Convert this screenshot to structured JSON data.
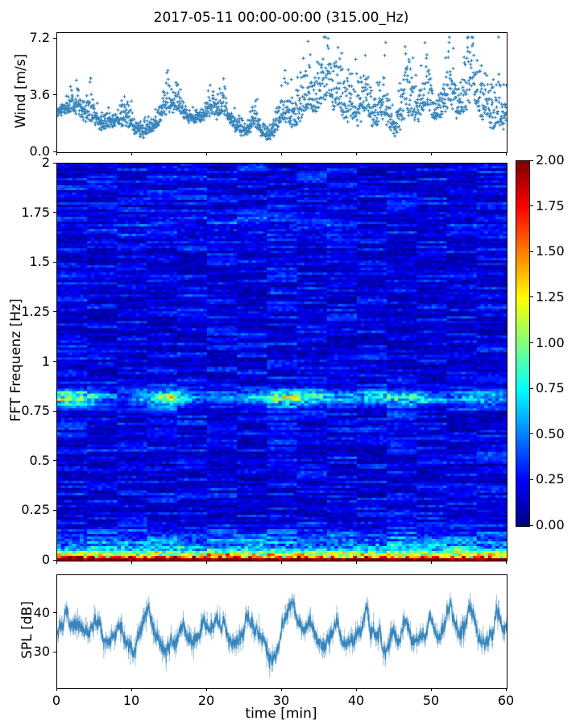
{
  "figure": {
    "title": "2017-05-11 00:00-00:00 (315.00_Hz)",
    "xlabel": "time [min]",
    "background": "#ffffff",
    "text_color": "#000000",
    "accent_blue": "#1f77b4"
  },
  "chart_data": [
    {
      "id": "wind",
      "type": "scatter",
      "ylabel": "Wind [m/s]",
      "marker": "+",
      "color": "#1f77b4",
      "xlim": [
        0,
        60
      ],
      "ylim": [
        0,
        7.56
      ],
      "yticks": [
        {
          "v": 0.0,
          "label": "0.0"
        },
        {
          "v": 3.6,
          "label": "3.6"
        },
        {
          "v": 7.2,
          "label": "7.2"
        }
      ],
      "xticks": [
        {
          "v": 0
        },
        {
          "v": 10
        },
        {
          "v": 20
        },
        {
          "v": 30
        },
        {
          "v": 40
        },
        {
          "v": 50
        },
        {
          "v": 60
        }
      ],
      "n_points": 1800,
      "summary": "Wind speed scatter: dense band 1-3.5 m/s for first ~30 min with occasional gusts to ~5; gustier after 30 min with spikes reaching 7.2 m/s near 36, 47 and 55 min; brief calm dip near 28 min.",
      "synthesis": {
        "seed": 11,
        "base_level": 1.7,
        "calm_noise": 0.75,
        "gusty_noise": 1.65,
        "gust_onset_min": 28,
        "dip": {
          "t": 28.2,
          "depth": 0.45,
          "w": 0.7
        },
        "gust_clusters": [
          {
            "t": 2.5,
            "a": 0.8,
            "w": 0.6
          },
          {
            "t": 4.6,
            "a": 1.1,
            "w": 0.5
          },
          {
            "t": 9.2,
            "a": 1.0,
            "w": 0.5
          },
          {
            "t": 14.8,
            "a": 1.6,
            "w": 0.6
          },
          {
            "t": 16.2,
            "a": 1.2,
            "w": 0.4
          },
          {
            "t": 20.5,
            "a": 0.9,
            "w": 0.5
          },
          {
            "t": 22.3,
            "a": 1.1,
            "w": 0.4
          },
          {
            "t": 26.3,
            "a": 1.1,
            "w": 0.4
          },
          {
            "t": 30.5,
            "a": 1.5,
            "w": 0.5
          },
          {
            "t": 33.2,
            "a": 2.0,
            "w": 0.7
          },
          {
            "t": 35.8,
            "a": 3.3,
            "w": 0.6
          },
          {
            "t": 37.6,
            "a": 2.8,
            "w": 0.5
          },
          {
            "t": 39.3,
            "a": 1.8,
            "w": 0.5
          },
          {
            "t": 41.2,
            "a": 2.2,
            "w": 0.6
          },
          {
            "t": 43.6,
            "a": 1.7,
            "w": 0.5
          },
          {
            "t": 46.8,
            "a": 2.8,
            "w": 0.7
          },
          {
            "t": 49.3,
            "a": 1.7,
            "w": 0.5
          },
          {
            "t": 52.3,
            "a": 2.4,
            "w": 0.6
          },
          {
            "t": 55.3,
            "a": 2.9,
            "w": 0.7
          },
          {
            "t": 57.2,
            "a": 1.8,
            "w": 0.4
          },
          {
            "t": 58.9,
            "a": 2.3,
            "w": 0.5
          }
        ]
      }
    },
    {
      "id": "spectrogram",
      "type": "heatmap",
      "ylabel": "FFT Frequenz [Hz]",
      "colormap": "jet",
      "vmin": 0,
      "vmax": 2,
      "xlim": [
        0,
        60
      ],
      "ylim": [
        0,
        2
      ],
      "yticks": [
        {
          "v": 0,
          "label": "0"
        },
        {
          "v": 0.25,
          "label": "0.25"
        },
        {
          "v": 0.5,
          "label": "0.5"
        },
        {
          "v": 0.75,
          "label": "0.75"
        },
        {
          "v": 1,
          "label": "1"
        },
        {
          "v": 1.25,
          "label": "1.25"
        },
        {
          "v": 1.5,
          "label": "1.5"
        },
        {
          "v": 1.75,
          "label": "1.75"
        },
        {
          "v": 2,
          "label": "2"
        }
      ],
      "xticks": [
        {
          "v": 0
        },
        {
          "v": 10
        },
        {
          "v": 20
        },
        {
          "v": 30
        },
        {
          "v": 40
        },
        {
          "v": 50
        },
        {
          "v": 60
        }
      ],
      "grid": {
        "cols": 120,
        "rows": 164
      },
      "summary": "Mostly dark-blue background (values ~0.05-0.4); bright cyan-to-yellow horizontal band near 0.82 Hz strongest around 2, 15, 33 and 48 min; very faint brighter patch near 1.68 Hz mid-record; strong multicolour band below ~0.18 Hz with saturated dark-red bottom rows (value 2.0).",
      "features": {
        "background_level": [
          0.05,
          0.4
        ],
        "main_band": {
          "freq_hz": 0.82,
          "sigma_hz": 0.028,
          "amp_base": 0.35,
          "hotspots": [
            {
              "t": 2.5,
              "amp": 0.55,
              "w": 2.5
            },
            {
              "t": 15,
              "amp": 0.5,
              "w": 2.2
            },
            {
              "t": 33,
              "amp": 0.75,
              "w": 3.2
            },
            {
              "t": 48,
              "amp": 0.5,
              "w": 2.5
            }
          ]
        },
        "faint_band": {
          "freq_hz": 1.68,
          "sigma_hz": 0.05,
          "amp": 0.16,
          "t_range": [
            8,
            38
          ]
        },
        "low_freq_band": {
          "below_hz": 0.18,
          "amp": 0.9
        },
        "surface_band": {
          "below_hz": 0.06,
          "amp": 1.1
        },
        "bottom_rows": {
          "below_hz": 0.015,
          "value_min": 1.7,
          "value_max": 2.0
        }
      },
      "synthesis": {
        "seed": 7
      }
    },
    {
      "id": "spl",
      "type": "line",
      "ylabel": "SPL [dB]",
      "xlabel": "time [min]",
      "color": "#1f77b4",
      "xlim": [
        0,
        60
      ],
      "ylim": [
        20.9,
        49.9
      ],
      "yticks": [
        {
          "v": 30,
          "label": "30"
        },
        {
          "v": 40,
          "label": "40"
        }
      ],
      "xticks": [
        {
          "v": 0,
          "label": "0"
        },
        {
          "v": 10,
          "label": "10"
        },
        {
          "v": 20,
          "label": "20"
        },
        {
          "v": 30,
          "label": "30"
        },
        {
          "v": 40,
          "label": "40"
        },
        {
          "v": 50,
          "label": "50"
        },
        {
          "v": 60,
          "label": "60"
        }
      ],
      "n_points": 3600,
      "mean_db": 34.6,
      "range_db": [
        24,
        47
      ],
      "summary": "Noisy SPL trace fluctuating around ~35 dB between ~25 and ~47 dB; pronounced dip near 28-29 min; tallest peak ~47 dB near 46.5 min.",
      "synthesis": {
        "seed": 23,
        "peaks": [
          {
            "t": 1.2,
            "a": 3.5,
            "w": 0.4
          },
          {
            "t": 5.3,
            "a": 5.0,
            "w": 0.5
          },
          {
            "t": 8.3,
            "a": 3.5,
            "w": 0.4
          },
          {
            "t": 12.2,
            "a": 4.5,
            "w": 0.5
          },
          {
            "t": 16.8,
            "a": 4.0,
            "w": 0.4
          },
          {
            "t": 19.5,
            "a": 3.5,
            "w": 0.3
          },
          {
            "t": 25.6,
            "a": 4.0,
            "w": 0.35
          },
          {
            "t": 31.3,
            "a": 5.0,
            "w": 0.5
          },
          {
            "t": 33.8,
            "a": 3.5,
            "w": 0.3
          },
          {
            "t": 37.3,
            "a": 5.5,
            "w": 0.4
          },
          {
            "t": 41.2,
            "a": 4.5,
            "w": 0.35
          },
          {
            "t": 44.8,
            "a": 3.5,
            "w": 0.3
          },
          {
            "t": 46.6,
            "a": 7.0,
            "w": 0.45
          },
          {
            "t": 49.9,
            "a": 3.0,
            "w": 0.3
          },
          {
            "t": 52.3,
            "a": 5.0,
            "w": 0.5
          },
          {
            "t": 55.2,
            "a": 4.5,
            "w": 0.4
          },
          {
            "t": 58.6,
            "a": 4.0,
            "w": 0.4
          }
        ],
        "dips": [
          {
            "t": 10.2,
            "a": -3.0,
            "w": 0.4
          },
          {
            "t": 23.3,
            "a": -4.0,
            "w": 0.5
          },
          {
            "t": 28.7,
            "a": -7.5,
            "w": 0.6
          },
          {
            "t": 35.5,
            "a": -3.0,
            "w": 0.3
          },
          {
            "t": 43.9,
            "a": -3.5,
            "w": 0.35
          },
          {
            "t": 50.8,
            "a": -2.5,
            "w": 0.3
          }
        ]
      }
    }
  ],
  "colorbar": {
    "colormap": "jet",
    "vmin": 0,
    "vmax": 2,
    "ticks": [
      {
        "v": 2.0,
        "label": "2.00"
      },
      {
        "v": 1.75,
        "label": "1.75"
      },
      {
        "v": 1.5,
        "label": "1.50"
      },
      {
        "v": 1.25,
        "label": "1.25"
      },
      {
        "v": 1.0,
        "label": "1.00"
      },
      {
        "v": 0.75,
        "label": "0.75"
      },
      {
        "v": 0.5,
        "label": "0.50"
      },
      {
        "v": 0.25,
        "label": "0.25"
      },
      {
        "v": 0.0,
        "label": "0.00"
      }
    ]
  }
}
